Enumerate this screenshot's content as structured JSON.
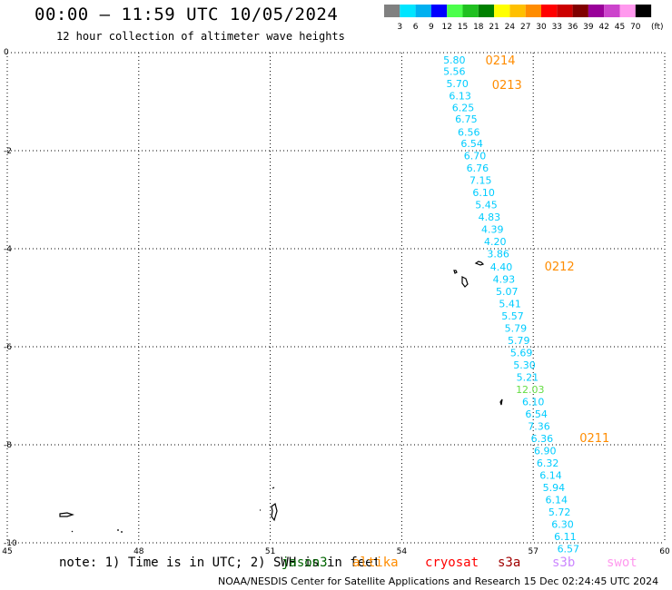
{
  "title": "00:00 — 11:59 UTC 10/05/2024",
  "subtitle": "12 hour collection of altimeter wave heights",
  "note": "note: 1) Time is in UTC; 2) SWH is in feet",
  "credit": "NOAA/NESDIS Center for Satellite Applications and Research   15 Dec 02:24:45 UTC 2024",
  "color_scale": {
    "unit_label": "(ft)",
    "labels": [
      "3",
      "6",
      "9",
      "12",
      "15",
      "18",
      "21",
      "24",
      "27",
      "30",
      "33",
      "36",
      "39",
      "42",
      "45",
      "70"
    ],
    "colors": [
      "#808080",
      "#00e5ff",
      "#00b0f0",
      "#0000ff",
      "#4cff4c",
      "#20c020",
      "#008000",
      "#ffff00",
      "#ffc000",
      "#ff8c00",
      "#ff0000",
      "#cc0000",
      "#800000",
      "#990099",
      "#cc44cc",
      "#ff99ee",
      "#000000"
    ]
  },
  "satellites": [
    {
      "name": "jason3",
      "color": "#006400"
    },
    {
      "name": "altika",
      "color": "#ff8c00"
    },
    {
      "name": "cryosat",
      "color": "#ff0000"
    },
    {
      "name": "s3a",
      "color": "#a00000"
    },
    {
      "name": "s3b",
      "color": "#cc88ff"
    },
    {
      "name": "swot",
      "color": "#ff99ee"
    }
  ],
  "chart_data": {
    "type": "scatter",
    "xlim": [
      45,
      60
    ],
    "ylim": [
      -10,
      0
    ],
    "x_ticks": [
      "45",
      "48",
      "51",
      "54",
      "57",
      "60"
    ],
    "y_ticks": [
      "0",
      "-2",
      "-4",
      "-6",
      "-8",
      "-10"
    ],
    "grid": true,
    "track_points": [
      {
        "lon": 55.2,
        "lat": -0.15,
        "swh": "5.80",
        "color": "#00ccff"
      },
      {
        "lon": 55.2,
        "lat": -0.38,
        "swh": "5.56",
        "color": "#00ccff"
      },
      {
        "lon": 55.27,
        "lat": -0.63,
        "swh": "5.70",
        "color": "#00ccff"
      },
      {
        "lon": 55.33,
        "lat": -0.88,
        "swh": "6.13",
        "color": "#00ccff"
      },
      {
        "lon": 55.4,
        "lat": -1.12,
        "swh": "6.25",
        "color": "#00ccff"
      },
      {
        "lon": 55.47,
        "lat": -1.35,
        "swh": "6.75",
        "color": "#00ccff"
      },
      {
        "lon": 55.53,
        "lat": -1.62,
        "swh": "6.56",
        "color": "#00ccff"
      },
      {
        "lon": 55.6,
        "lat": -1.85,
        "swh": "6.54",
        "color": "#00ccff"
      },
      {
        "lon": 55.67,
        "lat": -2.1,
        "swh": "6.70",
        "color": "#00ccff"
      },
      {
        "lon": 55.73,
        "lat": -2.35,
        "swh": "6.76",
        "color": "#00ccff"
      },
      {
        "lon": 55.8,
        "lat": -2.6,
        "swh": "7.15",
        "color": "#00ccff"
      },
      {
        "lon": 55.87,
        "lat": -2.85,
        "swh": "6.10",
        "color": "#00ccff"
      },
      {
        "lon": 55.93,
        "lat": -3.1,
        "swh": "5.45",
        "color": "#00ccff"
      },
      {
        "lon": 56.0,
        "lat": -3.35,
        "swh": "4.83",
        "color": "#00ccff"
      },
      {
        "lon": 56.07,
        "lat": -3.6,
        "swh": "4.39",
        "color": "#00ccff"
      },
      {
        "lon": 56.13,
        "lat": -3.85,
        "swh": "4.20",
        "color": "#00ccff"
      },
      {
        "lon": 56.2,
        "lat": -4.1,
        "swh": "3.86",
        "color": "#00ccff"
      },
      {
        "lon": 56.27,
        "lat": -4.37,
        "swh": "4.40",
        "color": "#00ccff"
      },
      {
        "lon": 56.33,
        "lat": -4.62,
        "swh": "4.93",
        "color": "#00ccff"
      },
      {
        "lon": 56.4,
        "lat": -4.87,
        "swh": "5.07",
        "color": "#00ccff"
      },
      {
        "lon": 56.47,
        "lat": -5.12,
        "swh": "5.41",
        "color": "#00ccff"
      },
      {
        "lon": 56.53,
        "lat": -5.37,
        "swh": "5.57",
        "color": "#00ccff"
      },
      {
        "lon": 56.6,
        "lat": -5.62,
        "swh": "5.79",
        "color": "#00ccff"
      },
      {
        "lon": 56.67,
        "lat": -5.87,
        "swh": "5.79",
        "color": "#00ccff"
      },
      {
        "lon": 56.73,
        "lat": -6.12,
        "swh": "5.69",
        "color": "#00ccff"
      },
      {
        "lon": 56.8,
        "lat": -6.37,
        "swh": "5.30",
        "color": "#00ccff"
      },
      {
        "lon": 56.87,
        "lat": -6.62,
        "swh": "5.21",
        "color": "#00ccff"
      },
      {
        "lon": 56.93,
        "lat": -6.87,
        "swh": "12.03",
        "color": "#66dd44"
      },
      {
        "lon": 57.0,
        "lat": -7.12,
        "swh": "6.10",
        "color": "#00ccff"
      },
      {
        "lon": 57.07,
        "lat": -7.37,
        "swh": "6.54",
        "color": "#00ccff"
      },
      {
        "lon": 57.13,
        "lat": -7.62,
        "swh": "7.36",
        "color": "#00ccff"
      },
      {
        "lon": 57.2,
        "lat": -7.87,
        "swh": "6.36",
        "color": "#00ccff"
      },
      {
        "lon": 57.27,
        "lat": -8.12,
        "swh": "6.90",
        "color": "#00ccff"
      },
      {
        "lon": 57.33,
        "lat": -8.37,
        "swh": "6.32",
        "color": "#00ccff"
      },
      {
        "lon": 57.4,
        "lat": -8.62,
        "swh": "6.14",
        "color": "#00ccff"
      },
      {
        "lon": 57.47,
        "lat": -8.87,
        "swh": "5.94",
        "color": "#00ccff"
      },
      {
        "lon": 57.53,
        "lat": -9.12,
        "swh": "6.14",
        "color": "#00ccff"
      },
      {
        "lon": 57.6,
        "lat": -9.37,
        "swh": "5.72",
        "color": "#00ccff"
      },
      {
        "lon": 57.67,
        "lat": -9.62,
        "swh": "6.30",
        "color": "#00ccff"
      },
      {
        "lon": 57.73,
        "lat": -9.87,
        "swh": "6.11",
        "color": "#00ccff"
      },
      {
        "lon": 57.8,
        "lat": -10.12,
        "swh": "6.57",
        "color": "#00ccff"
      }
    ],
    "time_labels": [
      {
        "lon": 56.25,
        "lat": -0.15,
        "text": "0214",
        "color": "#ff8c00"
      },
      {
        "lon": 56.4,
        "lat": -0.65,
        "text": "0213",
        "color": "#ff8c00"
      },
      {
        "lon": 57.6,
        "lat": -4.35,
        "text": "0212",
        "color": "#ff8c00"
      },
      {
        "lon": 58.4,
        "lat": -7.85,
        "text": "0211",
        "color": "#ff8c00"
      }
    ]
  }
}
